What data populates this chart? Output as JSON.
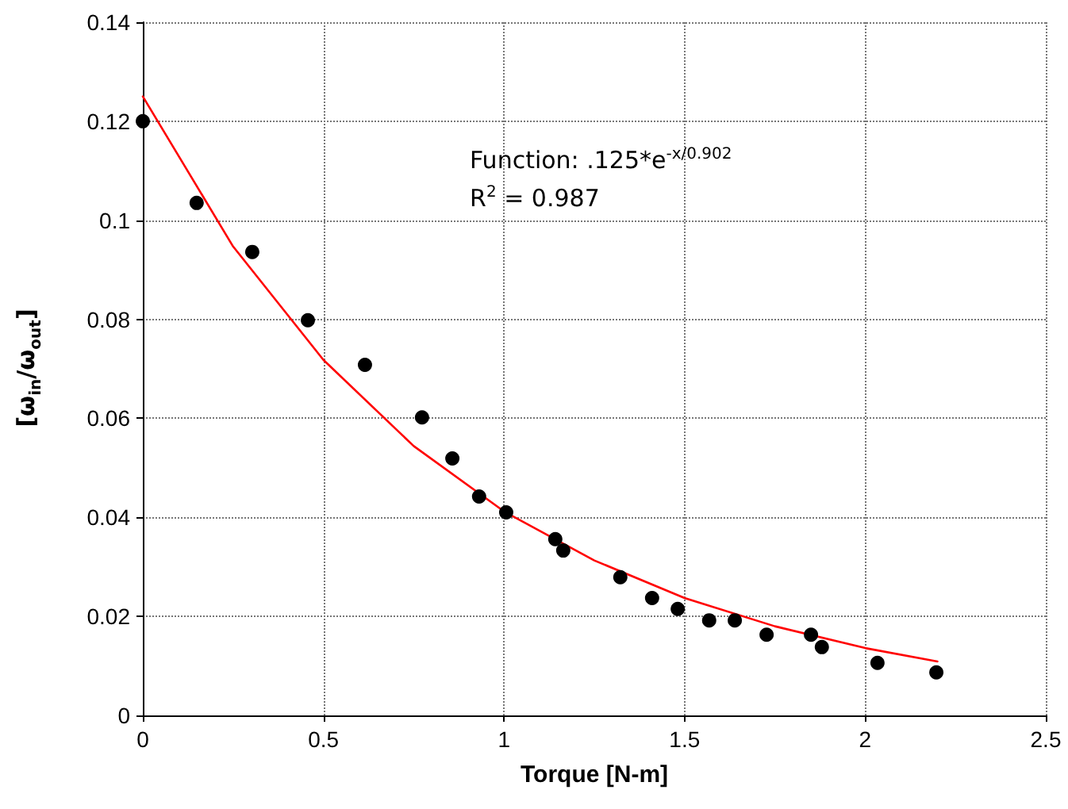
{
  "chart_data": {
    "type": "scatter",
    "xlabel": "Torque [N-m]",
    "ylabel": "[ω$_{in}$/ω$_{out}$]",
    "annotations": [
      "Function: .125*e$^{-x/0.902}$",
      "R$^{2}$ = 0.987"
    ],
    "series": [
      {
        "color": "#000000",
        "x": [
          0,
          0.149,
          0.303,
          0.457,
          0.615,
          0.773,
          0.857,
          0.931,
          1.006,
          1.142,
          1.164,
          1.322,
          1.41,
          1.481,
          1.568,
          1.639,
          1.727,
          1.85,
          1.88,
          2.034,
          2.197
        ],
        "values": [
          0.12,
          0.1035,
          0.0936,
          0.0798,
          0.0708,
          0.0602,
          0.0519,
          0.0442,
          0.041,
          0.0356,
          0.0333,
          0.0279,
          0.0237,
          0.0215,
          0.0192,
          0.0192,
          0.0163,
          0.0163,
          0.0138,
          0.0106,
          0.0087
        ]
      },
      {
        "type": "line",
        "color": "#ff0000",
        "marker": "none",
        "x": [
          0,
          0.25,
          0.5,
          0.75,
          1,
          1.25,
          1.5,
          1.75,
          2,
          2.2
        ],
        "values": [
          0.125,
          0.0947,
          0.0718,
          0.0544,
          0.0412,
          0.0313,
          0.0237,
          0.018,
          0.0136,
          0.0109
        ]
      }
    ],
    "marker": "circle",
    "grid": true,
    "xlim": [
      0,
      2.5
    ],
    "xticks": [
      0,
      0.5,
      1,
      1.5,
      2,
      2.5
    ],
    "ylim": [
      0,
      0.14
    ],
    "yticks": [
      0,
      0.02,
      0.04,
      0.06,
      0.08,
      0.1,
      0.12,
      0.14
    ]
  }
}
